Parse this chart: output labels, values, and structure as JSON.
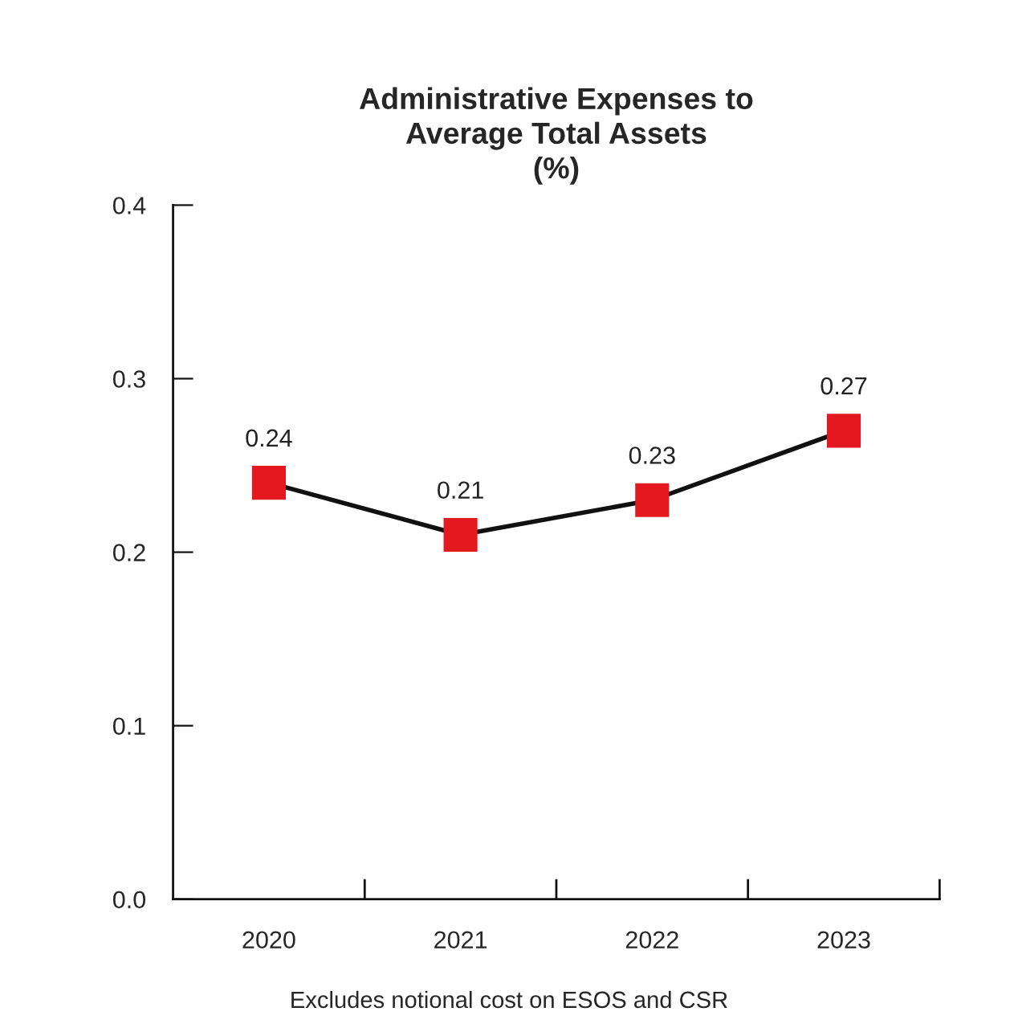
{
  "chart_data": {
    "type": "line",
    "title": "Administrative Expenses to\nAverage Total Assets\n(%)",
    "categories": [
      "2020",
      "2021",
      "2022",
      "2023"
    ],
    "series": [
      {
        "color": "#e3191f",
        "values": [
          0.24,
          0.21,
          0.23,
          0.27
        ]
      }
    ],
    "ylim": [
      0.0,
      0.4
    ],
    "yticks": [
      {
        "value": 0.0,
        "label": "0.0"
      },
      {
        "value": 0.1,
        "label": "0.1"
      },
      {
        "value": 0.2,
        "label": "0.2"
      },
      {
        "value": 0.3,
        "label": "0.3"
      },
      {
        "value": 0.4,
        "label": "0.4"
      }
    ],
    "data_labels": true,
    "marker": "square",
    "line_style": "solid",
    "grid": false,
    "annotations": [
      "Excludes notional cost on ESOS and CSR"
    ]
  }
}
